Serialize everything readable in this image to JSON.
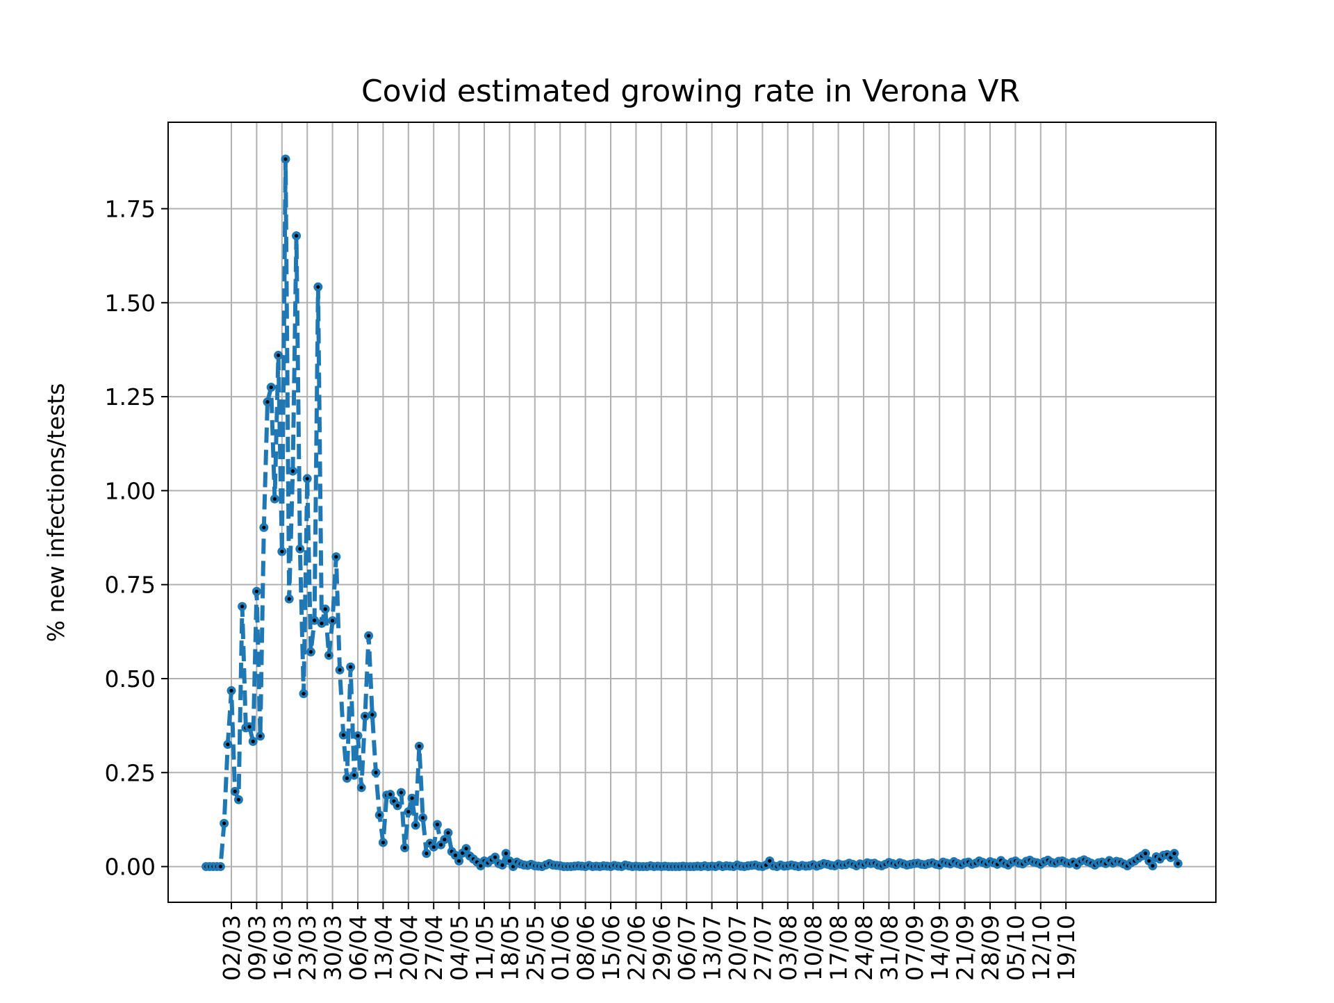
{
  "chart_data": {
    "type": "line",
    "title": "Covid estimated growing rate in Verona VR",
    "xlabel": "",
    "ylabel": "% new infections/tests",
    "start_date": "2020-02-24",
    "x_ticks": [
      "02/03",
      "09/03",
      "16/03",
      "23/03",
      "30/03",
      "06/04",
      "13/04",
      "20/04",
      "27/04",
      "04/05",
      "11/05",
      "18/05",
      "25/05",
      "01/06",
      "08/06",
      "15/06",
      "22/06",
      "29/06",
      "06/07",
      "13/07",
      "20/07",
      "27/07",
      "03/08",
      "10/08",
      "17/08",
      "24/08",
      "31/08",
      "07/09",
      "14/09",
      "21/09",
      "28/09",
      "05/10",
      "12/10",
      "19/10"
    ],
    "y_ticks": [
      "0.00",
      "0.25",
      "0.50",
      "0.75",
      "1.00",
      "1.25",
      "1.50",
      "1.75"
    ],
    "ylim": [
      -0.095,
      1.98
    ],
    "grid": true,
    "colors": {
      "line": "#1f77b4",
      "marker_center": "#000000"
    },
    "series": [
      {
        "name": "",
        "values": [
          0,
          0,
          0,
          0,
          0,
          0.115,
          0.325,
          0.468,
          0.2,
          0.178,
          0.692,
          0.369,
          0.372,
          0.333,
          0.732,
          0.347,
          0.902,
          1.236,
          1.275,
          0.978,
          1.36,
          0.838,
          1.882,
          0.712,
          1.052,
          1.678,
          0.845,
          0.46,
          1.032,
          0.571,
          0.655,
          1.542,
          0.647,
          0.685,
          0.562,
          0.654,
          0.824,
          0.523,
          0.35,
          0.235,
          0.531,
          0.243,
          0.348,
          0.21,
          0.4,
          0.614,
          0.404,
          0.25,
          0.137,
          0.064,
          0.19,
          0.192,
          0.174,
          0.162,
          0.197,
          0.05,
          0.146,
          0.182,
          0.11,
          0.32,
          0.13,
          0.035,
          0.062,
          0.052,
          0.112,
          0.058,
          0.072,
          0.09,
          0.04,
          0.03,
          0.015,
          0.036,
          0.048,
          0.028,
          0.02,
          0.012,
          0.002,
          0.015,
          0.01,
          0.018,
          0.025,
          0.008,
          0.004,
          0.035,
          0.015,
          0,
          0.012,
          0.007,
          0.004,
          0.003,
          0.006,
          0.002,
          0.001,
          0,
          0.004,
          0.008,
          0.004,
          0.003,
          0.002,
          0,
          0,
          0,
          0.001,
          0.002,
          0.001,
          0,
          0.003,
          0,
          0.001,
          0,
          0.002,
          0.001,
          0,
          0.003,
          0.001,
          0,
          0.004,
          0.002,
          0,
          0.001,
          0,
          0,
          0,
          0.002,
          0,
          0.001,
          0,
          0.001,
          0,
          0,
          0,
          0,
          0.001,
          0,
          0,
          0,
          0.001,
          0,
          0.002,
          0,
          0.001,
          0,
          0.003,
          0,
          0.002,
          0.001,
          0,
          0.004,
          0.001,
          0,
          0.002,
          0.003,
          0.004,
          0.001,
          0,
          0.004,
          0.015,
          0.002,
          0,
          0.004,
          0.001,
          0.002,
          0.004,
          0.002,
          0,
          0.003,
          0.001,
          0.002,
          0.005,
          0.001,
          0.004,
          0.008,
          0.006,
          0.003,
          0.002,
          0.007,
          0.004,
          0.005,
          0.009,
          0.006,
          0.002,
          0.007,
          0.005,
          0.01,
          0.008,
          0.009,
          0.004,
          0.002,
          0.006,
          0.011,
          0.008,
          0.005,
          0.01,
          0.007,
          0.004,
          0.006,
          0.008,
          0.009,
          0.006,
          0.005,
          0.008,
          0.01,
          0.006,
          0.004,
          0.012,
          0.009,
          0.007,
          0.013,
          0.008,
          0.005,
          0.01,
          0.012,
          0.006,
          0.009,
          0.015,
          0.011,
          0.007,
          0.013,
          0.01,
          0.006,
          0.016,
          0.008,
          0.004,
          0.012,
          0.015,
          0.009,
          0.007,
          0.014,
          0.017,
          0.012,
          0.01,
          0.006,
          0.013,
          0.017,
          0.011,
          0.009,
          0.014,
          0.015,
          0.01,
          0.008,
          0.012,
          0.004,
          0.014,
          0.018,
          0.013,
          0.009,
          0.004,
          0.01,
          0.012,
          0.008,
          0.016,
          0.009,
          0.014,
          0.012,
          0.007,
          0.002,
          0.01,
          0.015,
          0.022,
          0.028,
          0.035,
          0.015,
          0.002,
          0.026,
          0.02,
          0.03,
          0.032,
          0.024,
          0.035,
          0.008
        ]
      }
    ]
  }
}
